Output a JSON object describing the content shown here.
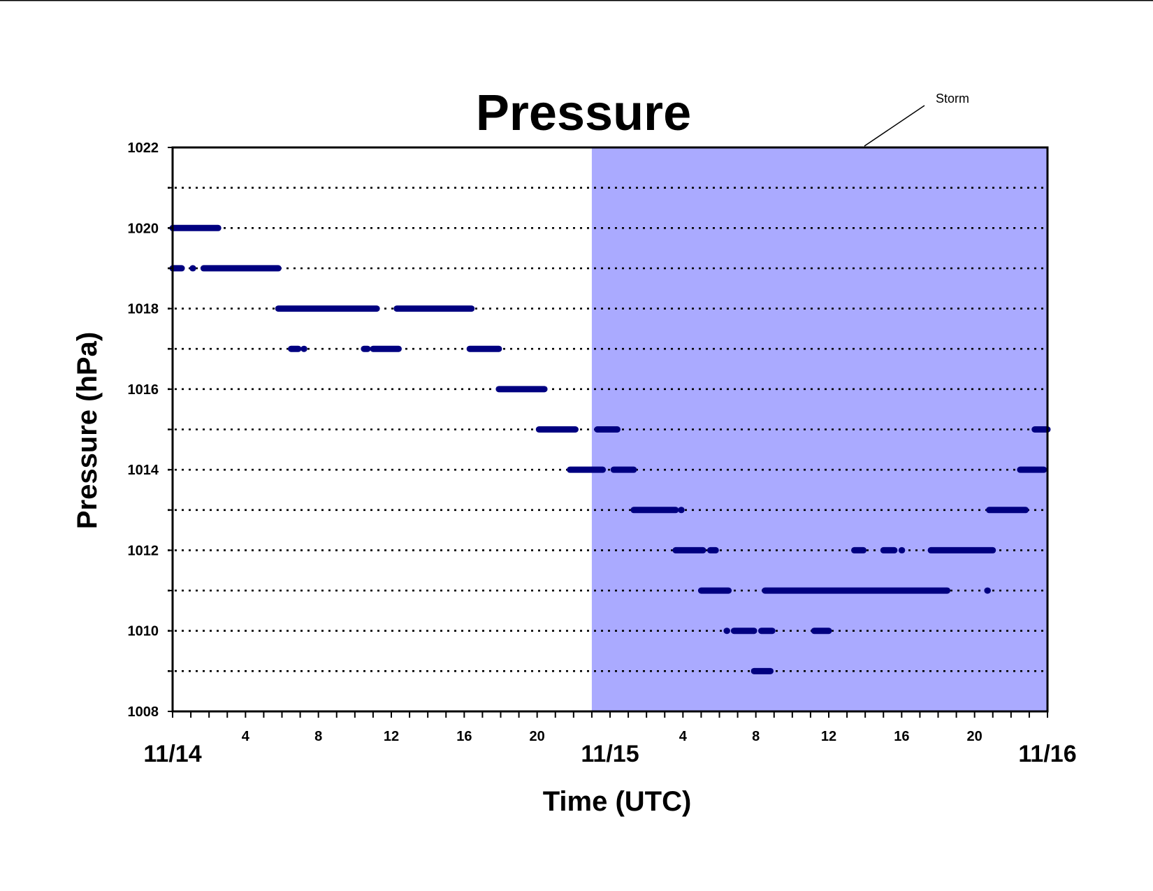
{
  "chart_data": {
    "type": "scatter",
    "title": "Pressure",
    "xlabel": "Time (UTC)",
    "ylabel": "Pressure (hPa)",
    "xlim_hours": [
      0,
      48
    ],
    "ylim": [
      1008,
      1022
    ],
    "y_ticks": [
      1008,
      1010,
      1012,
      1014,
      1016,
      1018,
      1020,
      1022
    ],
    "y_gridlines": [
      1009,
      1010,
      1011,
      1012,
      1013,
      1014,
      1015,
      1016,
      1017,
      1018,
      1019,
      1020,
      1021
    ],
    "grid": "dotted horizontal",
    "x_hour_ticks": [
      {
        "hour": 4,
        "label": "4"
      },
      {
        "hour": 8,
        "label": "8"
      },
      {
        "hour": 12,
        "label": "12"
      },
      {
        "hour": 16,
        "label": "16"
      },
      {
        "hour": 20,
        "label": "20"
      },
      {
        "hour": 28,
        "label": "4"
      },
      {
        "hour": 32,
        "label": "8"
      },
      {
        "hour": 36,
        "label": "12"
      },
      {
        "hour": 40,
        "label": "16"
      },
      {
        "hour": 44,
        "label": "20"
      }
    ],
    "x_day_ticks": [
      {
        "hour": 0,
        "label": "11/14"
      },
      {
        "hour": 24,
        "label": "11/15"
      },
      {
        "hour": 48,
        "label": "11/16"
      }
    ],
    "shaded_region": {
      "label": "Storm",
      "start_hour": 23,
      "end_hour": 48,
      "color": "#aaaaff"
    },
    "marker_color": "#000080",
    "segments": [
      {
        "y": 1020,
        "x": [
          0.0,
          2.5
        ]
      },
      {
        "y": 1019,
        "x": [
          0.0,
          0.5
        ]
      },
      {
        "y": 1019,
        "x": [
          1.1,
          1.1
        ]
      },
      {
        "y": 1019,
        "x": [
          1.7,
          5.8
        ]
      },
      {
        "y": 1018,
        "x": [
          5.8,
          11.2
        ]
      },
      {
        "y": 1018,
        "x": [
          12.3,
          16.4
        ]
      },
      {
        "y": 1017,
        "x": [
          6.5,
          6.9
        ]
      },
      {
        "y": 1017,
        "x": [
          7.2,
          7.2
        ]
      },
      {
        "y": 1017,
        "x": [
          10.5,
          10.7
        ]
      },
      {
        "y": 1017,
        "x": [
          11.0,
          12.4
        ]
      },
      {
        "y": 1017,
        "x": [
          16.3,
          17.9
        ]
      },
      {
        "y": 1016,
        "x": [
          17.9,
          20.4
        ]
      },
      {
        "y": 1015,
        "x": [
          20.1,
          22.1
        ]
      },
      {
        "y": 1015,
        "x": [
          23.3,
          24.4
        ]
      },
      {
        "y": 1015,
        "x": [
          47.3,
          48.0
        ]
      },
      {
        "y": 1014,
        "x": [
          21.8,
          23.6
        ]
      },
      {
        "y": 1014,
        "x": [
          24.2,
          25.3
        ]
      },
      {
        "y": 1014,
        "x": [
          46.5,
          47.8
        ]
      },
      {
        "y": 1013,
        "x": [
          25.3,
          27.6
        ]
      },
      {
        "y": 1013,
        "x": [
          27.9,
          27.9
        ]
      },
      {
        "y": 1013,
        "x": [
          44.8,
          46.8
        ]
      },
      {
        "y": 1012,
        "x": [
          27.6,
          29.1
        ]
      },
      {
        "y": 1012,
        "x": [
          29.5,
          29.8
        ]
      },
      {
        "y": 1012,
        "x": [
          37.4,
          37.9
        ]
      },
      {
        "y": 1012,
        "x": [
          39.0,
          39.6
        ]
      },
      {
        "y": 1012,
        "x": [
          40.0,
          40.0
        ]
      },
      {
        "y": 1012,
        "x": [
          41.6,
          45.0
        ]
      },
      {
        "y": 1011,
        "x": [
          29.0,
          30.5
        ]
      },
      {
        "y": 1011,
        "x": [
          32.5,
          42.5
        ]
      },
      {
        "y": 1011,
        "x": [
          44.7,
          44.7
        ]
      },
      {
        "y": 1010,
        "x": [
          30.4,
          30.4
        ]
      },
      {
        "y": 1010,
        "x": [
          30.8,
          31.9
        ]
      },
      {
        "y": 1010,
        "x": [
          32.3,
          32.9
        ]
      },
      {
        "y": 1010,
        "x": [
          35.2,
          36.0
        ]
      },
      {
        "y": 1009,
        "x": [
          31.9,
          32.8
        ]
      }
    ]
  }
}
